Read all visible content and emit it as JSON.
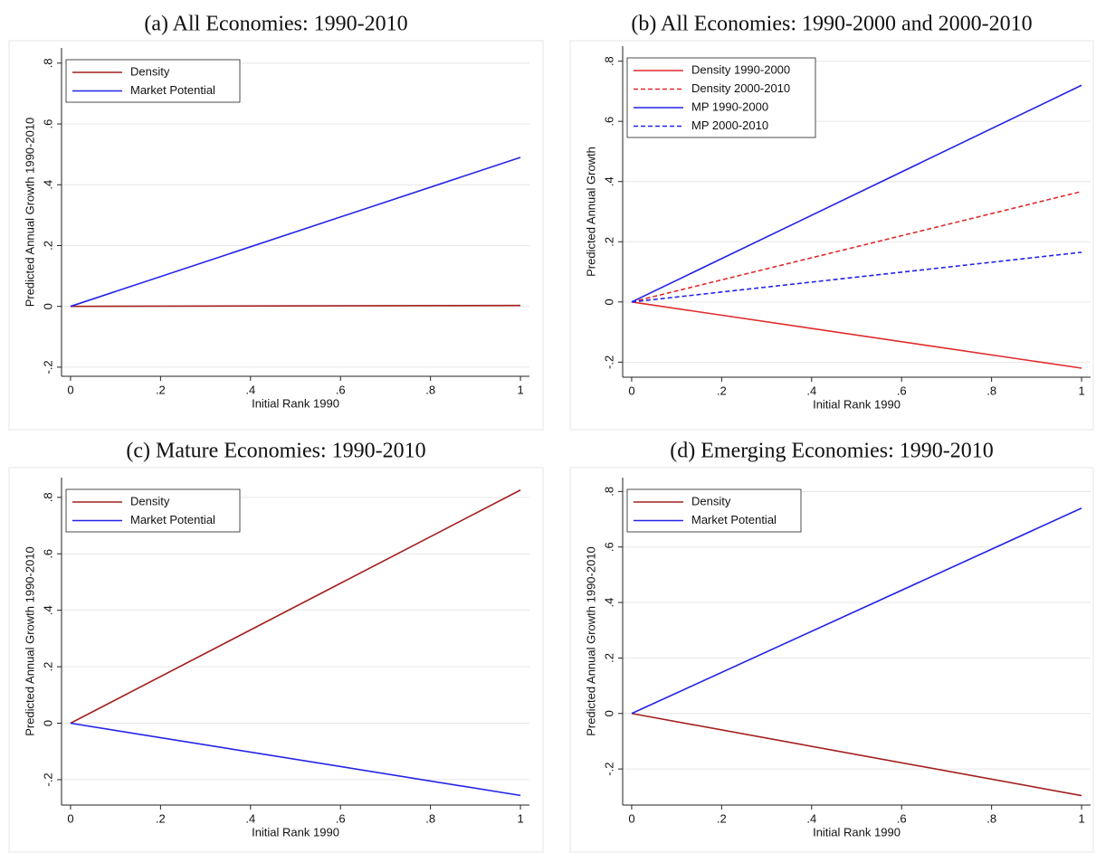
{
  "chart_data": [
    {
      "type": "line",
      "title": "(a) All Economies: 1990-2010",
      "xlabel": "Initial Rank 1990",
      "ylabel": "Predicted Annual Growth 1990-2010",
      "x": [
        0,
        1
      ],
      "series": [
        {
          "name": "Density",
          "color": "#a31f1f",
          "dash": false,
          "values": [
            0,
            0.003
          ]
        },
        {
          "name": "Market Potential",
          "color": "#2323e8",
          "dash": false,
          "values": [
            0,
            0.49
          ]
        }
      ],
      "xlim": [
        -0.02,
        1.02
      ],
      "ylim": [
        -0.23,
        0.85
      ],
      "xticks": [
        0,
        {
          "value": 0.2,
          "label": ".2"
        },
        {
          "value": 0.4,
          "label": ".4"
        },
        {
          "value": 0.6,
          "label": ".6"
        },
        {
          "value": 0.8,
          "label": ".8"
        },
        1
      ],
      "yticks": [
        {
          "value": -0.2,
          "label": "-.2"
        },
        0,
        {
          "value": 0.2,
          "label": ".2"
        },
        {
          "value": 0.4,
          "label": ".4"
        },
        {
          "value": 0.6,
          "label": ".6"
        },
        {
          "value": 0.8,
          "label": ".8"
        }
      ],
      "grid": true,
      "legend": "upper-left"
    },
    {
      "type": "line",
      "title": "(b) All Economies: 1990-2000 and 2000-2010",
      "xlabel": "Initial Rank 1990",
      "ylabel": "Predicted Annual Growth",
      "x": [
        0,
        1
      ],
      "series": [
        {
          "name": "Density 1990-2000",
          "color": "#e02a2a",
          "dash": false,
          "values": [
            0,
            -0.22
          ]
        },
        {
          "name": "Density 2000-2010",
          "color": "#e02a2a",
          "dash": true,
          "values": [
            0,
            0.367
          ]
        },
        {
          "name": "MP 1990-2000",
          "color": "#2323e8",
          "dash": false,
          "values": [
            0,
            0.72
          ]
        },
        {
          "name": "MP 2000-2010",
          "color": "#2323e8",
          "dash": true,
          "values": [
            0,
            0.165
          ]
        }
      ],
      "xlim": [
        -0.02,
        1.02
      ],
      "ylim": [
        -0.25,
        0.85
      ],
      "xticks": [
        0,
        {
          "value": 0.2,
          "label": ".2"
        },
        {
          "value": 0.4,
          "label": ".4"
        },
        {
          "value": 0.6,
          "label": ".6"
        },
        {
          "value": 0.8,
          "label": ".8"
        },
        1
      ],
      "yticks": [
        {
          "value": -0.2,
          "label": "-.2"
        },
        0,
        {
          "value": 0.2,
          "label": ".2"
        },
        {
          "value": 0.4,
          "label": ".4"
        },
        {
          "value": 0.6,
          "label": ".6"
        },
        {
          "value": 0.8,
          "label": ".8"
        }
      ],
      "grid": true,
      "legend": "upper-left"
    },
    {
      "type": "line",
      "title": "(c) Mature Economies: 1990-2010",
      "xlabel": "Initial Rank 1990",
      "ylabel": "Predicted Annual Growth 1990-2010",
      "x": [
        0,
        1
      ],
      "series": [
        {
          "name": "Density",
          "color": "#a31f1f",
          "dash": false,
          "values": [
            0,
            0.826
          ]
        },
        {
          "name": "Market Potential",
          "color": "#2323e8",
          "dash": false,
          "values": [
            0,
            -0.256
          ]
        }
      ],
      "xlim": [
        -0.02,
        1.02
      ],
      "ylim": [
        -0.29,
        0.87
      ],
      "xticks": [
        0,
        {
          "value": 0.2,
          "label": ".2"
        },
        {
          "value": 0.4,
          "label": ".4"
        },
        {
          "value": 0.6,
          "label": ".6"
        },
        {
          "value": 0.8,
          "label": ".8"
        },
        1
      ],
      "yticks": [
        {
          "value": -0.2,
          "label": "-.2"
        },
        0,
        {
          "value": 0.2,
          "label": ".2"
        },
        {
          "value": 0.4,
          "label": ".4"
        },
        {
          "value": 0.6,
          "label": ".6"
        },
        {
          "value": 0.8,
          "label": ".8"
        }
      ],
      "grid": true,
      "legend": "upper-left"
    },
    {
      "type": "line",
      "title": "(d) Emerging Economies: 1990-2010",
      "xlabel": "Initial Rank 1990",
      "ylabel": "Predicted Annual Growth 1990-2010",
      "x": [
        0,
        1
      ],
      "series": [
        {
          "name": "Density",
          "color": "#a31f1f",
          "dash": false,
          "values": [
            0,
            -0.296
          ]
        },
        {
          "name": "Market Potential",
          "color": "#2323e8",
          "dash": false,
          "values": [
            0,
            0.74
          ]
        }
      ],
      "xlim": [
        -0.02,
        1.02
      ],
      "ylim": [
        -0.33,
        0.85
      ],
      "xticks": [
        0,
        {
          "value": 0.2,
          "label": ".2"
        },
        {
          "value": 0.4,
          "label": ".4"
        },
        {
          "value": 0.6,
          "label": ".6"
        },
        {
          "value": 0.8,
          "label": ".8"
        },
        1
      ],
      "yticks": [
        {
          "value": -0.2,
          "label": "-.2"
        },
        0,
        {
          "value": 0.2,
          "label": ".2"
        },
        {
          "value": 0.4,
          "label": ".4"
        },
        {
          "value": 0.6,
          "label": ".6"
        },
        {
          "value": 0.8,
          "label": ".8"
        }
      ],
      "grid": true,
      "legend": "upper-left"
    }
  ]
}
